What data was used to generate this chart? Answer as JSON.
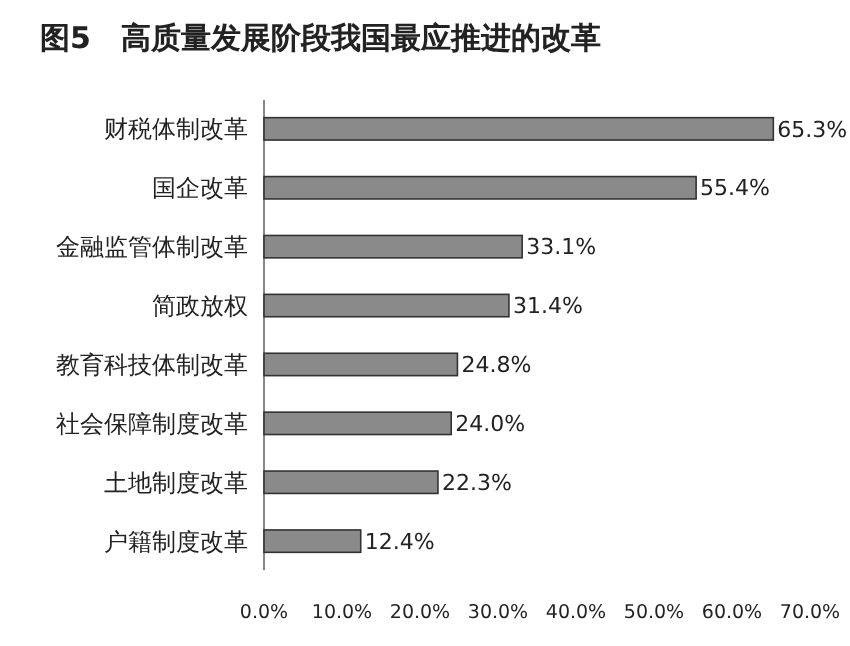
{
  "chart_data": {
    "type": "bar",
    "orientation": "horizontal",
    "title": "图5　高质量发展阶段我国最应推进的改革",
    "categories": [
      "财税体制改革",
      "国企改革",
      "金融监管体制改革",
      "简政放权",
      "教育科技体制改革",
      "社会保障制度改革",
      "土地制度改革",
      "户籍制度改革"
    ],
    "values": [
      65.3,
      55.4,
      33.1,
      31.4,
      24.8,
      24.0,
      22.3,
      12.4
    ],
    "value_labels": [
      "65.3%",
      "55.4%",
      "33.1%",
      "31.4%",
      "24.8%",
      "24.0%",
      "22.3%",
      "12.4%"
    ],
    "color": "#8a8a8a",
    "xlim": [
      0,
      70
    ],
    "xticks": [
      {
        "value": 0,
        "label": "0.0%"
      },
      {
        "value": 10,
        "label": "10.0%"
      },
      {
        "value": 20,
        "label": "20.0%"
      },
      {
        "value": 30,
        "label": "30.0%"
      },
      {
        "value": 40,
        "label": "40.0%"
      },
      {
        "value": 50,
        "label": "50.0%"
      },
      {
        "value": 60,
        "label": "60.0%"
      },
      {
        "value": 70,
        "label": "70.0%"
      }
    ],
    "grid": false
  }
}
